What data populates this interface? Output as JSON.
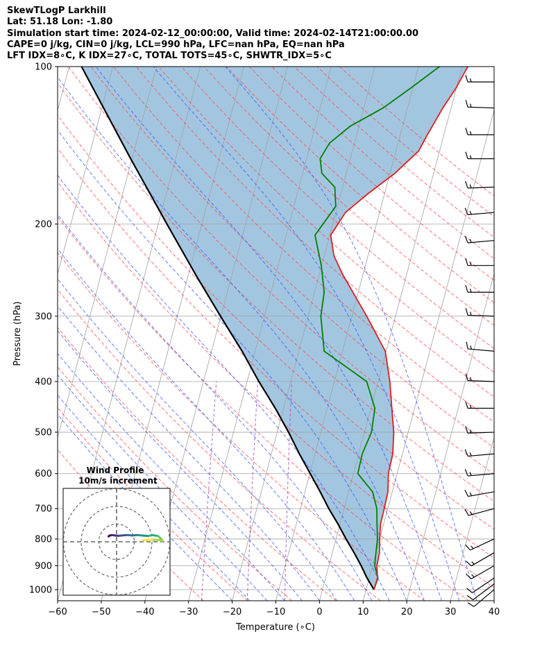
{
  "header": {
    "line1": "SkewTLogP Larkhill",
    "line2": "Lat: 51.18   Lon: -1.80",
    "line3": "Simulation start time: 2024-02-12_00:00:00, Valid time: 2024-02-14T21:00:00.00",
    "line4": "CAPE=0 j/kg, CIN=0 j/kg, LCL=990 hPa, LFC=nan hPa, EQ=nan hPa",
    "line5": "LFT IDX=8∘C, K IDX=27∘C, TOTAL TOTS=45∘C, SHWTR_IDX=5∘C"
  },
  "inset": {
    "title": "Wind Profile",
    "subtitle": "10m/s increment"
  },
  "colors": {
    "temperature": "#e41a1c",
    "dewpoint": "#008000",
    "parcel": "#000000",
    "shade": "#a3c6e0",
    "dry_adiabat": "#ff4040",
    "moist_adiabat": "#3050ff",
    "mixing_ratio": "#a040c0",
    "isotherm": "#a0a0a0"
  },
  "chart_data": {
    "type": "line",
    "xlabel": "Temperature (∘C)",
    "ylabel": "Pressure (hPa)",
    "xlim": [
      -60,
      40
    ],
    "ylim": [
      1050,
      100
    ],
    "y_scale": "log",
    "x_ticks": [
      "−60",
      "−50",
      "−40",
      "−30",
      "−20",
      "−10",
      "0",
      "10",
      "20",
      "30",
      "40"
    ],
    "x_tick_values": [
      -60,
      -50,
      -40,
      -30,
      -20,
      -10,
      0,
      10,
      20,
      30,
      40
    ],
    "y_ticks": [
      "100",
      "200",
      "300",
      "400",
      "500",
      "600",
      "700",
      "800",
      "900",
      "1000"
    ],
    "y_tick_values": [
      100,
      200,
      300,
      400,
      500,
      600,
      700,
      800,
      900,
      1000
    ],
    "grid": true,
    "skew_deg_per_decade": 32,
    "series": [
      {
        "kind": "temperature",
        "points": [
          [
            1000,
            11.8
          ],
          [
            950,
            11.9
          ],
          [
            900,
            11.0
          ],
          [
            850,
            10.8
          ],
          [
            800,
            10.0
          ],
          [
            750,
            9.3
          ],
          [
            700,
            9.2
          ],
          [
            650,
            9.0
          ],
          [
            600,
            8.0
          ],
          [
            550,
            7.8
          ],
          [
            500,
            6.7
          ],
          [
            450,
            4.8
          ],
          [
            400,
            2.7
          ],
          [
            350,
            -0.2
          ],
          [
            300,
            -6.6
          ],
          [
            250,
            -14.6
          ],
          [
            230,
            -17.8
          ],
          [
            210,
            -19.8
          ],
          [
            190,
            -17.8
          ],
          [
            175,
            -13.8
          ],
          [
            160,
            -8.9
          ],
          [
            145,
            -4.8
          ],
          [
            135,
            -3.8
          ],
          [
            120,
            -1.9
          ],
          [
            110,
            -0.1
          ],
          [
            100,
            1.3
          ]
        ]
      },
      {
        "kind": "dewpoint",
        "points": [
          [
            1000,
            11.8
          ],
          [
            950,
            12.0
          ],
          [
            900,
            10.5
          ],
          [
            850,
            10.0
          ],
          [
            800,
            9.5
          ],
          [
            750,
            8.5
          ],
          [
            700,
            7.5
          ],
          [
            650,
            5.5
          ],
          [
            600,
            1.0
          ],
          [
            550,
            0.8
          ],
          [
            500,
            1.6
          ],
          [
            450,
            0.9
          ],
          [
            400,
            -2.6
          ],
          [
            350,
            -14.2
          ],
          [
            300,
            -17.1
          ],
          [
            270,
            -17.8
          ],
          [
            240,
            -20.1
          ],
          [
            210,
            -23.4
          ],
          [
            185,
            -20.4
          ],
          [
            170,
            -21.8
          ],
          [
            160,
            -25.6
          ],
          [
            150,
            -26.9
          ],
          [
            140,
            -25.7
          ],
          [
            130,
            -22.0
          ],
          [
            120,
            -15.6
          ],
          [
            110,
            -10.5
          ],
          [
            100,
            -5.2
          ]
        ]
      },
      {
        "kind": "parcel",
        "points": [
          [
            1000,
            11.8
          ],
          [
            950,
            9.5
          ],
          [
            900,
            7.4
          ],
          [
            850,
            5.0
          ],
          [
            800,
            2.3
          ],
          [
            750,
            -0.4
          ],
          [
            700,
            -3.5
          ],
          [
            650,
            -6.5
          ],
          [
            600,
            -9.9
          ],
          [
            550,
            -13.6
          ],
          [
            500,
            -17.4
          ],
          [
            450,
            -21.9
          ],
          [
            400,
            -27.3
          ],
          [
            350,
            -33.0
          ],
          [
            300,
            -40.1
          ],
          [
            250,
            -48.3
          ],
          [
            200,
            -58.0
          ],
          [
            150,
            -70.3
          ],
          [
            100,
            -87.2
          ]
        ]
      }
    ],
    "wind_barbs": [
      {
        "p": 1000,
        "dir": 230,
        "speed_kt": 10
      },
      {
        "p": 975,
        "dir": 233,
        "speed_kt": 10
      },
      {
        "p": 950,
        "dir": 236,
        "speed_kt": 10
      },
      {
        "p": 900,
        "dir": 240,
        "speed_kt": 15
      },
      {
        "p": 850,
        "dir": 240,
        "speed_kt": 15
      },
      {
        "p": 800,
        "dir": 245,
        "speed_kt": 15
      },
      {
        "p": 700,
        "dir": 255,
        "speed_kt": 15
      },
      {
        "p": 650,
        "dir": 260,
        "speed_kt": 15
      },
      {
        "p": 600,
        "dir": 265,
        "speed_kt": 15
      },
      {
        "p": 550,
        "dir": 265,
        "speed_kt": 15
      },
      {
        "p": 500,
        "dir": 268,
        "speed_kt": 15
      },
      {
        "p": 450,
        "dir": 270,
        "speed_kt": 15
      },
      {
        "p": 400,
        "dir": 272,
        "speed_kt": 15
      },
      {
        "p": 350,
        "dir": 275,
        "speed_kt": 15
      },
      {
        "p": 300,
        "dir": 272,
        "speed_kt": 15
      },
      {
        "p": 270,
        "dir": 270,
        "speed_kt": 15
      },
      {
        "p": 240,
        "dir": 270,
        "speed_kt": 15
      },
      {
        "p": 215,
        "dir": 265,
        "speed_kt": 15
      },
      {
        "p": 190,
        "dir": 265,
        "speed_kt": 15
      },
      {
        "p": 170,
        "dir": 268,
        "speed_kt": 15
      },
      {
        "p": 150,
        "dir": 270,
        "speed_kt": 15
      },
      {
        "p": 135,
        "dir": 270,
        "speed_kt": 15
      },
      {
        "p": 120,
        "dir": 272,
        "speed_kt": 15
      },
      {
        "p": 107,
        "dir": 270,
        "speed_kt": 15
      }
    ],
    "hodograph": {
      "rings_ms": [
        10,
        20,
        30
      ],
      "points": [
        [
          -4.5,
          3.0
        ],
        [
          -4.0,
          3.5
        ],
        [
          -2.5,
          3.8
        ],
        [
          -1.0,
          3.6
        ],
        [
          1.0,
          3.4
        ],
        [
          3.0,
          3.6
        ],
        [
          6.0,
          3.8
        ],
        [
          9.0,
          3.6
        ],
        [
          12.0,
          3.8
        ],
        [
          15.0,
          3.5
        ],
        [
          18.0,
          3.3
        ],
        [
          20.5,
          3.8
        ],
        [
          23.5,
          3.2
        ],
        [
          25.0,
          1.8
        ],
        [
          26.0,
          0.5
        ],
        [
          24.0,
          1.0
        ],
        [
          20.0,
          1.2
        ],
        [
          15.0,
          1.0
        ]
      ]
    }
  }
}
